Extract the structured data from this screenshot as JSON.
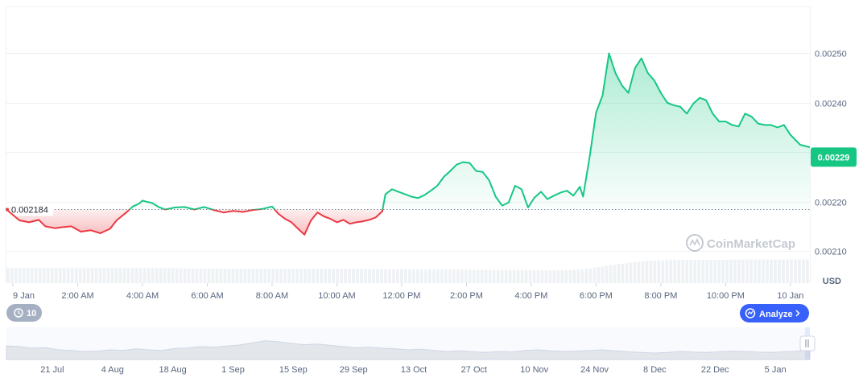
{
  "chart_data": {
    "type": "area",
    "currency": "USD",
    "open_price": 0.002184,
    "current_price": "0.00229",
    "open_price_label": "0.002184",
    "ylim": [
      0.002035,
      0.002595
    ],
    "y_ticks": [
      {
        "value": 0.0021,
        "label": "0.00210"
      },
      {
        "value": 0.0022,
        "label": "0.00220"
      },
      {
        "value": 0.0024,
        "label": "0.00240"
      },
      {
        "value": 0.0025,
        "label": "0.00250"
      }
    ],
    "x_ticks": [
      {
        "t": 0,
        "label": "9 Jan"
      },
      {
        "t": 2,
        "label": "2:00 AM"
      },
      {
        "t": 4,
        "label": "4:00 AM"
      },
      {
        "t": 6,
        "label": "6:00 AM"
      },
      {
        "t": 8,
        "label": "8:00 AM"
      },
      {
        "t": 10,
        "label": "10:00 AM"
      },
      {
        "t": 12,
        "label": "12:00 PM"
      },
      {
        "t": 14,
        "label": "2:00 PM"
      },
      {
        "t": 16,
        "label": "4:00 PM"
      },
      {
        "t": 18,
        "label": "6:00 PM"
      },
      {
        "t": 20,
        "label": "8:00 PM"
      },
      {
        "t": 22,
        "label": "10:00 PM"
      },
      {
        "t": 24,
        "label": "10 Jan"
      }
    ],
    "series": [
      {
        "x": [
          -0.2,
          0.2,
          0.5,
          0.8,
          1.0,
          1.3,
          1.5,
          1.8,
          2.1,
          2.4,
          2.7,
          3.0,
          3.2,
          3.5,
          3.7,
          3.9,
          4.0,
          4.1,
          4.3,
          4.5,
          4.7,
          5.0,
          5.3,
          5.6,
          5.9,
          6.2,
          6.5,
          6.8,
          7.1,
          7.4,
          7.7,
          8.0,
          8.2,
          8.4,
          8.6,
          8.8,
          9.0,
          9.2,
          9.4,
          9.6,
          9.8,
          10.0,
          10.2,
          10.4,
          10.6,
          10.8,
          11.0,
          11.2,
          11.4,
          11.5,
          11.7,
          11.9,
          12.1,
          12.3,
          12.5,
          12.7,
          12.9,
          13.1,
          13.3,
          13.5,
          13.7,
          13.9,
          14.1,
          14.3,
          14.5,
          14.7,
          14.9,
          15.1,
          15.3,
          15.5,
          15.7,
          15.9,
          16.1,
          16.3,
          16.5,
          16.7,
          16.9,
          17.1,
          17.3,
          17.5,
          17.6,
          17.8,
          18.0,
          18.2,
          18.4,
          18.6,
          18.8,
          19.0,
          19.2,
          19.4,
          19.6,
          19.8,
          20.0,
          20.2,
          20.4,
          20.6,
          20.8,
          21.0,
          21.2,
          21.4,
          21.6,
          21.8,
          22.0,
          22.2,
          22.4,
          22.6,
          22.8,
          23.0,
          23.2,
          23.4,
          23.6,
          23.8,
          24.0,
          24.3,
          24.6
        ],
        "values": [
          0.002184,
          0.002162,
          0.002158,
          0.002163,
          0.00215,
          0.002146,
          0.002148,
          0.00215,
          0.002139,
          0.002142,
          0.002136,
          0.002145,
          0.002162,
          0.002178,
          0.00219,
          0.002196,
          0.002202,
          0.0022,
          0.002197,
          0.002189,
          0.002184,
          0.002188,
          0.002189,
          0.002184,
          0.002189,
          0.002183,
          0.002178,
          0.002181,
          0.002179,
          0.002183,
          0.002185,
          0.00219,
          0.002175,
          0.002165,
          0.002158,
          0.002145,
          0.002133,
          0.002162,
          0.002178,
          0.00217,
          0.002165,
          0.002158,
          0.002163,
          0.002155,
          0.002158,
          0.00216,
          0.002163,
          0.002168,
          0.00218,
          0.002215,
          0.002225,
          0.00222,
          0.002215,
          0.00221,
          0.002207,
          0.002213,
          0.002222,
          0.002232,
          0.00225,
          0.002262,
          0.002275,
          0.00228,
          0.002278,
          0.002262,
          0.00226,
          0.002243,
          0.00221,
          0.002192,
          0.002198,
          0.002232,
          0.002225,
          0.002188,
          0.002208,
          0.00222,
          0.002205,
          0.002212,
          0.002218,
          0.002222,
          0.002212,
          0.00223,
          0.00221,
          0.00229,
          0.00238,
          0.002415,
          0.0025,
          0.00246,
          0.002435,
          0.00242,
          0.00247,
          0.00249,
          0.00246,
          0.002445,
          0.00242,
          0.0024,
          0.002395,
          0.002392,
          0.002378,
          0.002398,
          0.00241,
          0.002405,
          0.002378,
          0.002362,
          0.002362,
          0.002355,
          0.002352,
          0.002378,
          0.002372,
          0.002358,
          0.002355,
          0.002355,
          0.00235,
          0.002355,
          0.002335,
          0.002315,
          0.00231
        ]
      }
    ],
    "navigator": {
      "ticks": [
        {
          "t": 0.04,
          "label": "21 Jul"
        },
        {
          "t": 0.115,
          "label": "4 Aug"
        },
        {
          "t": 0.19,
          "label": "18 Aug"
        },
        {
          "t": 0.265,
          "label": "1 Sep"
        },
        {
          "t": 0.34,
          "label": "15 Sep"
        },
        {
          "t": 0.415,
          "label": "29 Sep"
        },
        {
          "t": 0.49,
          "label": "13 Oct"
        },
        {
          "t": 0.565,
          "label": "27 Oct"
        },
        {
          "t": 0.64,
          "label": "10 Nov"
        },
        {
          "t": 0.715,
          "label": "24 Nov"
        },
        {
          "t": 0.79,
          "label": "8 Dec"
        },
        {
          "t": 0.865,
          "label": "22 Dec"
        },
        {
          "t": 0.94,
          "label": "5 Jan"
        }
      ],
      "values": [
        0.42,
        0.4,
        0.35,
        0.37,
        0.3,
        0.28,
        0.25,
        0.26,
        0.3,
        0.28,
        0.33,
        0.3,
        0.28,
        0.34,
        0.36,
        0.4,
        0.38,
        0.42,
        0.45,
        0.52,
        0.58,
        0.55,
        0.5,
        0.46,
        0.48,
        0.44,
        0.4,
        0.36,
        0.38,
        0.35,
        0.33,
        0.3,
        0.32,
        0.28,
        0.25,
        0.27,
        0.24,
        0.22,
        0.25,
        0.23,
        0.28,
        0.3,
        0.27,
        0.25,
        0.26,
        0.28,
        0.3,
        0.27,
        0.24,
        0.22,
        0.2,
        0.22,
        0.25,
        0.23,
        0.22,
        0.24,
        0.26,
        0.25,
        0.23,
        0.22,
        0.24,
        0.26,
        0.32
      ]
    },
    "volume_level": [
      0.55,
      0.55,
      0.55,
      0.55,
      0.55,
      0.55,
      0.53,
      0.52,
      0.52,
      0.52,
      0.52,
      0.52,
      0.5,
      0.5,
      0.5,
      0.48,
      0.48,
      0.46,
      0.5,
      0.68,
      0.82,
      0.85,
      0.85,
      0.86,
      0.86,
      0.86
    ]
  },
  "ui": {
    "usd_label": "USD",
    "interval_badge": "10",
    "analyze_button": "Analyze",
    "watermark": "CoinMarketCap"
  },
  "colors": {
    "up": "#16c784",
    "down": "#ea3943",
    "analyze_bg": "#3861fb",
    "badge_bg": "#a6b0c3"
  }
}
